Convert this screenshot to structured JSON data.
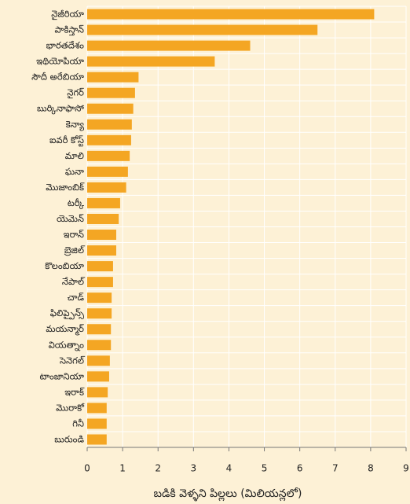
{
  "chart_data": {
    "type": "bar",
    "orientation": "horizontal",
    "xlabel": "బడికి వెళ్ళని పిల్లలు (మిలియన్లలో)",
    "categories": [
      "నైజీరియా",
      "పాకిస్తాన్",
      "భారతదేశం",
      "ఇథియోపియా",
      "సౌదీ అరేబియా",
      "నైగర్",
      "బుర్కినాఫాసో",
      "కెన్యా",
      "ఐవరీ కోస్ట్",
      "మాలి",
      "ఘనా",
      "మొజాంబిక్",
      "టర్కీ",
      "యెమెన్",
      "ఇరాన్",
      "బ్రెజిల్",
      "కొలంబియా",
      "నేపాల్",
      "చాడ్",
      "ఫిలిప్పైన్స్",
      "మయన్మార్",
      "వియత్నాం",
      "సెనెగల్",
      "టాంజానియా",
      "ఇరాక్",
      "మొరాకో",
      "గినీ",
      "బురుండి"
    ],
    "values": [
      8.1,
      6.5,
      4.6,
      3.6,
      1.45,
      1.35,
      1.3,
      1.26,
      1.24,
      1.2,
      1.15,
      1.1,
      0.93,
      0.89,
      0.82,
      0.82,
      0.73,
      0.73,
      0.69,
      0.69,
      0.67,
      0.67,
      0.64,
      0.62,
      0.58,
      0.55,
      0.55,
      0.55
    ],
    "color": "#f4a623",
    "xlim": [
      0,
      9
    ],
    "xticks": [
      0,
      1,
      2,
      3,
      4,
      5,
      6,
      7,
      8,
      9
    ],
    "grid": true
  }
}
